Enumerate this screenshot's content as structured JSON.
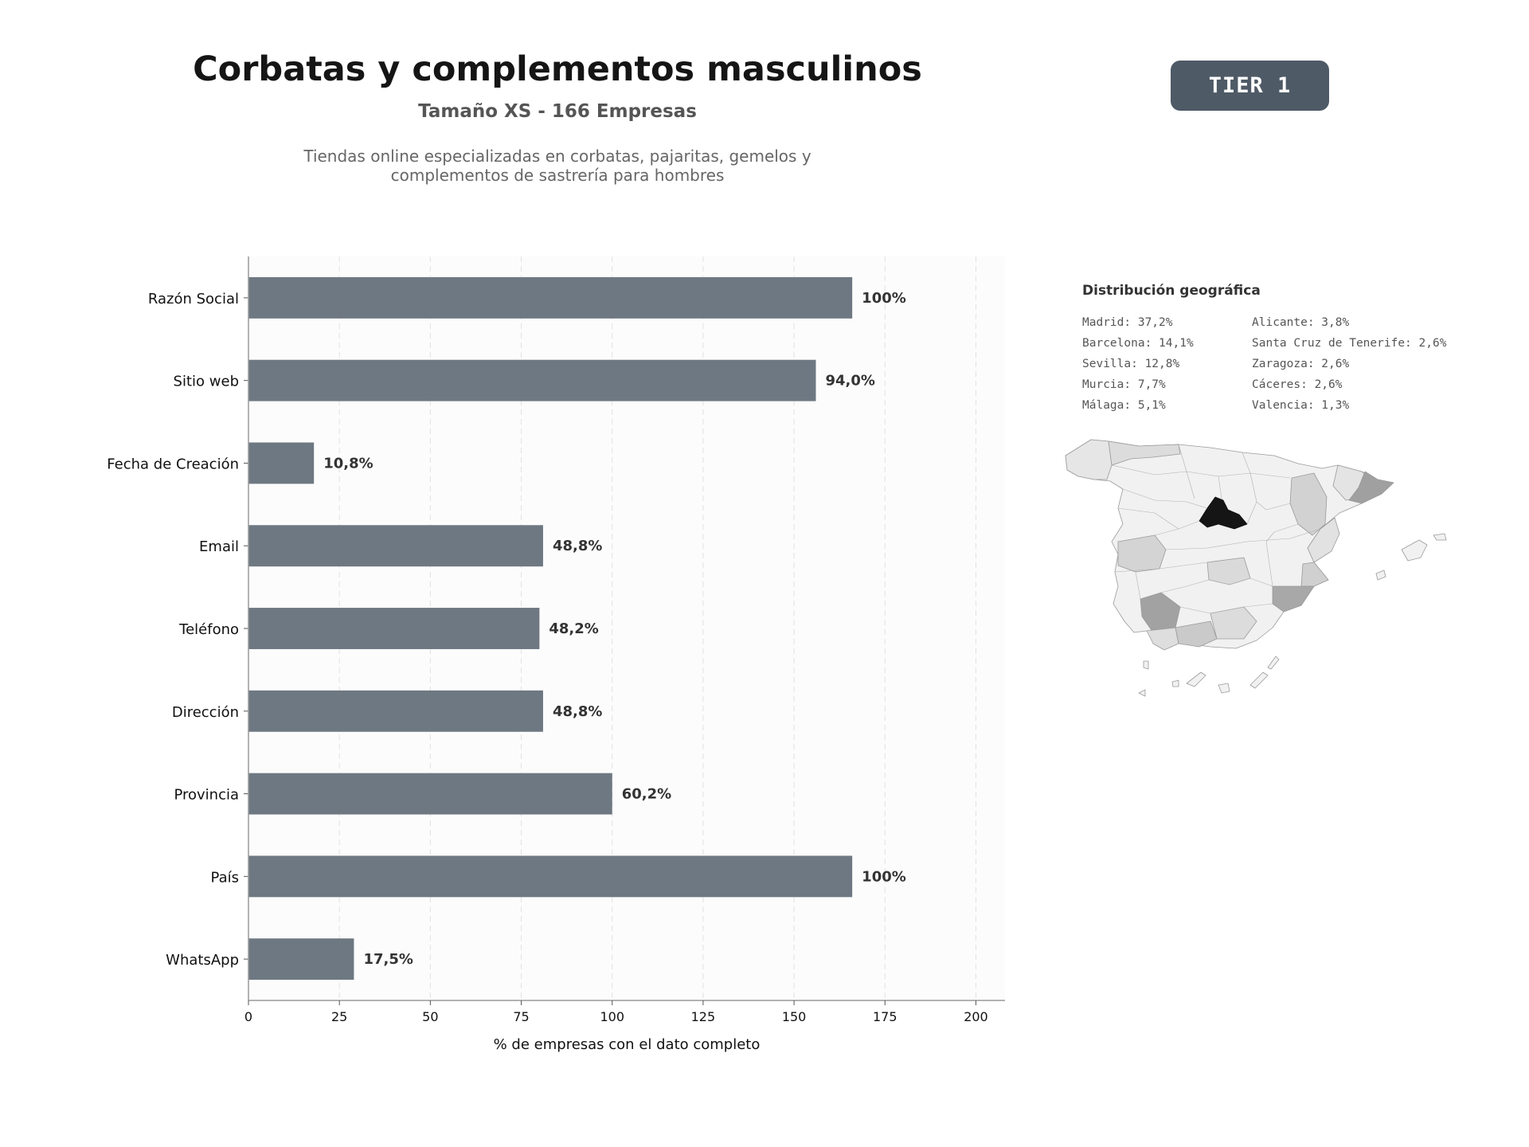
{
  "header": {
    "title": "Corbatas y complementos masculinos",
    "subtitle": "Tamaño XS - 166 Empresas",
    "description_line1": "Tiendas online especializadas en corbatas, pajaritas, gemelos y",
    "description_line2": "complementos de sastrería para hombres",
    "tier_label": "TIER 1"
  },
  "chart_data": {
    "type": "bar",
    "orientation": "horizontal",
    "categories": [
      "Razón Social",
      "Sitio web",
      "Fecha de Creación",
      "Email",
      "Teléfono",
      "Dirección",
      "Provincia",
      "País",
      "WhatsApp"
    ],
    "values": [
      166,
      156,
      18,
      81,
      80,
      81,
      100,
      166,
      29
    ],
    "data_labels": [
      "100%",
      "94,0%",
      "10,8%",
      "48,8%",
      "48,2%",
      "48,8%",
      "60,2%",
      "100%",
      "17,5%"
    ],
    "xlabel": "% de empresas con el dato completo",
    "xlim": [
      0,
      208
    ],
    "xticks": [
      0,
      25,
      50,
      75,
      100,
      125,
      150,
      175,
      200
    ],
    "grid": true,
    "bar_color": "#6e7882"
  },
  "geo": {
    "title": "Distribución geográfica",
    "items": [
      {
        "name": "Madrid",
        "pct": "37,2%"
      },
      {
        "name": "Alicante",
        "pct": "3,8%"
      },
      {
        "name": "Barcelona",
        "pct": "14,1%"
      },
      {
        "name": "Santa Cruz de Tenerife",
        "pct": "2,6%"
      },
      {
        "name": "Sevilla",
        "pct": "12,8%"
      },
      {
        "name": "Zaragoza",
        "pct": "2,6%"
      },
      {
        "name": "Murcia",
        "pct": "7,7%"
      },
      {
        "name": "Cáceres",
        "pct": "2,6%"
      },
      {
        "name": "Málaga",
        "pct": "5,1%"
      },
      {
        "name": "Valencia",
        "pct": "1,3%"
      }
    ]
  }
}
